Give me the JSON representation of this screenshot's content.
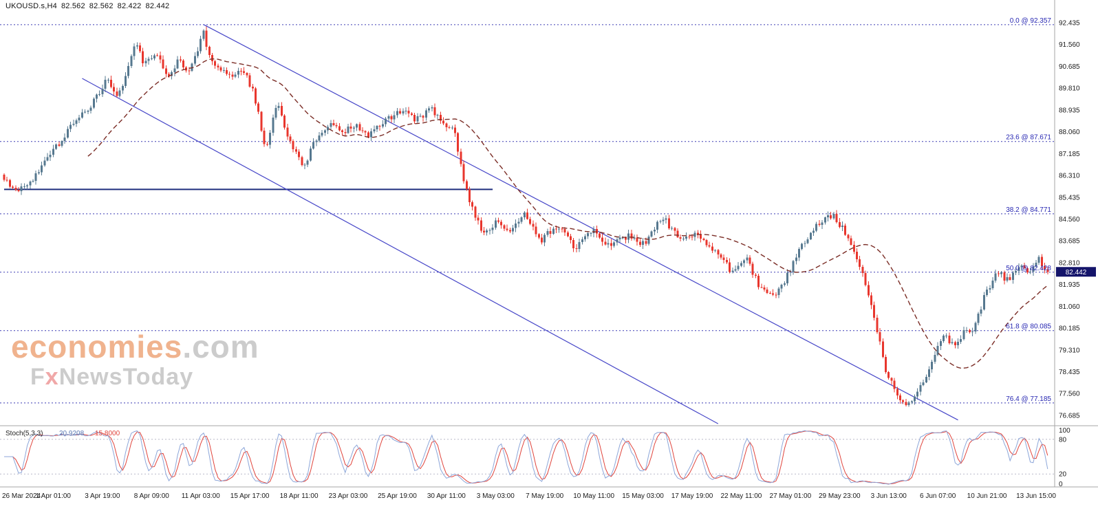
{
  "header": {
    "symbol": "UKOUSD.s,H4",
    "open": "82.562",
    "high": "82.562",
    "low": "82.422",
    "close": "82.442"
  },
  "watermark": {
    "brand": "economies",
    "brand_suffix": ".com",
    "tagline_prefix": "F",
    "tagline_accent": "x",
    "tagline_rest": "NewsToday"
  },
  "colors": {
    "bull_candle": "#56788f",
    "bear_candle": "#e8362d",
    "moving_average": "#7b2d26",
    "fib_line": "#3a3ab4",
    "fib_label": "#2626b2",
    "channel_line": "#4646c8",
    "support_line": "#1f2d7d",
    "axis_text": "#1a1a1a",
    "badge_bg": "#14146a",
    "badge_text": "#ffffff",
    "stoch_k": "#8ca6d9",
    "stoch_d": "#e0443c",
    "stoch_level": "#b8b8c8",
    "pane_border": "#a6a6a6",
    "watermark_brand": "#f0b38e",
    "watermark_gray": "#cccccc",
    "watermark_accent": "#f0a8a8"
  },
  "chart_data": {
    "type": "candlestick",
    "symbol": "UKOUSD.s",
    "timeframe": "H4",
    "title": "UKOUSD.s,H4 82.562 82.562 82.422 82.442",
    "bars_total": 362,
    "current_price": 82.442,
    "price_axis": {
      "ticks": [
        92.435,
        91.56,
        90.685,
        89.81,
        88.935,
        88.06,
        87.185,
        86.31,
        85.435,
        84.56,
        83.685,
        82.81,
        81.935,
        81.06,
        80.185,
        79.31,
        78.435,
        77.56,
        76.685
      ],
      "tick_interval": 0.875
    },
    "time_axis": {
      "labels": [
        {
          "text": "26 Mar 2024",
          "bar": 0
        },
        {
          "text": "1 Apr 01:00",
          "bar": 17
        },
        {
          "text": "3 Apr 19:00",
          "bar": 34
        },
        {
          "text": "8 Apr 09:00",
          "bar": 51
        },
        {
          "text": "11 Apr 03:00",
          "bar": 68
        },
        {
          "text": "15 Apr 17:00",
          "bar": 85
        },
        {
          "text": "18 Apr 11:00",
          "bar": 102
        },
        {
          "text": "23 Apr 03:00",
          "bar": 119
        },
        {
          "text": "25 Apr 19:00",
          "bar": 136
        },
        {
          "text": "30 Apr 11:00",
          "bar": 153
        },
        {
          "text": "3 May 03:00",
          "bar": 170
        },
        {
          "text": "7 May 19:00",
          "bar": 187
        },
        {
          "text": "10 May 11:00",
          "bar": 204
        },
        {
          "text": "15 May 03:00",
          "bar": 221
        },
        {
          "text": "17 May 19:00",
          "bar": 238
        },
        {
          "text": "22 May 11:00",
          "bar": 255
        },
        {
          "text": "27 May 01:00",
          "bar": 272
        },
        {
          "text": "29 May 23:00",
          "bar": 289
        },
        {
          "text": "3 Jun 13:00",
          "bar": 306
        },
        {
          "text": "6 Jun 07:00",
          "bar": 323
        },
        {
          "text": "10 Jun 21:00",
          "bar": 340
        },
        {
          "text": "13 Jun 15:00",
          "bar": 357
        }
      ]
    },
    "fib_levels": [
      {
        "label": "0.0 @ 92.357",
        "pct": 0.0,
        "price": 92.357
      },
      {
        "label": "23.6 @ 87.671",
        "pct": 23.6,
        "price": 87.671
      },
      {
        "label": "38.2 @ 84.771",
        "pct": 38.2,
        "price": 84.771
      },
      {
        "label": "50.0 @ 82.428",
        "pct": 50.0,
        "price": 82.428
      },
      {
        "label": "61.8 @ 80.085",
        "pct": 61.8,
        "price": 80.085
      },
      {
        "label": "76.4 @ 77.185",
        "pct": 76.4,
        "price": 77.185
      }
    ],
    "trendlines": [
      {
        "name": "channel-upper-line",
        "from_bar": 69,
        "from_price": 92.36,
        "to_bar": 330,
        "to_price": 76.5
      },
      {
        "name": "channel-lower-line",
        "from_bar": 27,
        "from_price": 90.2,
        "to_bar": 247,
        "to_price": 76.35
      }
    ],
    "support_line": {
      "price": 85.75,
      "from_bar": 0,
      "to_bar": 169
    },
    "price_path_anchors": [
      [
        0,
        86.35
      ],
      [
        5,
        85.55
      ],
      [
        12,
        86.4
      ],
      [
        17,
        87.2
      ],
      [
        24,
        88.3
      ],
      [
        30,
        89.0
      ],
      [
        36,
        90.15
      ],
      [
        40,
        89.4
      ],
      [
        46,
        91.7
      ],
      [
        49,
        90.7
      ],
      [
        53,
        91.3
      ],
      [
        57,
        90.3
      ],
      [
        61,
        90.9
      ],
      [
        64,
        90.3
      ],
      [
        68,
        91.5
      ],
      [
        69,
        92.25
      ],
      [
        71,
        91.2
      ],
      [
        78,
        90.2
      ],
      [
        83,
        90.6
      ],
      [
        87,
        89.6
      ],
      [
        91,
        87.4
      ],
      [
        95,
        89.3
      ],
      [
        99,
        87.8
      ],
      [
        104,
        86.6
      ],
      [
        108,
        87.7
      ],
      [
        113,
        88.4
      ],
      [
        118,
        88.0
      ],
      [
        122,
        88.4
      ],
      [
        127,
        87.9
      ],
      [
        132,
        88.5
      ],
      [
        138,
        88.9
      ],
      [
        143,
        88.5
      ],
      [
        148,
        89.0
      ],
      [
        152,
        88.4
      ],
      [
        156,
        88.2
      ],
      [
        160,
        85.8
      ],
      [
        166,
        83.9
      ],
      [
        171,
        84.5
      ],
      [
        176,
        84.0
      ],
      [
        180,
        84.8
      ],
      [
        186,
        83.7
      ],
      [
        192,
        84.3
      ],
      [
        198,
        83.4
      ],
      [
        204,
        84.2
      ],
      [
        210,
        83.4
      ],
      [
        216,
        83.9
      ],
      [
        222,
        83.5
      ],
      [
        228,
        84.7
      ],
      [
        234,
        83.7
      ],
      [
        240,
        84.0
      ],
      [
        247,
        83.2
      ],
      [
        252,
        82.5
      ],
      [
        257,
        83.0
      ],
      [
        262,
        81.8
      ],
      [
        266,
        81.4
      ],
      [
        271,
        82.2
      ],
      [
        276,
        83.4
      ],
      [
        281,
        84.3
      ],
      [
        287,
        84.7
      ],
      [
        291,
        84.1
      ],
      [
        296,
        82.9
      ],
      [
        301,
        80.9
      ],
      [
        305,
        78.7
      ],
      [
        309,
        77.5
      ],
      [
        313,
        77.1
      ],
      [
        317,
        77.8
      ],
      [
        321,
        78.6
      ],
      [
        325,
        79.9
      ],
      [
        329,
        79.5
      ],
      [
        333,
        80.1
      ],
      [
        336,
        80.2
      ],
      [
        340,
        81.6
      ],
      [
        344,
        82.4
      ],
      [
        348,
        82.1
      ],
      [
        352,
        82.8
      ],
      [
        355,
        82.5
      ],
      [
        358,
        83.0
      ],
      [
        361,
        82.45
      ]
    ],
    "moving_average_period": 30,
    "indicator": {
      "label": "Stoch(5,3,3)",
      "value_k": "20.9208",
      "value_d": "15.8000",
      "levels": [
        20,
        80
      ],
      "axis_labels": [
        100,
        80,
        20,
        0
      ],
      "range": [
        0,
        100
      ]
    }
  }
}
